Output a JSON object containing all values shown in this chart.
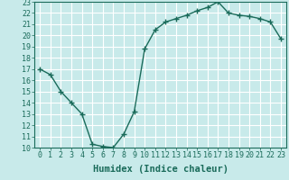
{
  "x": [
    0,
    1,
    2,
    3,
    4,
    5,
    6,
    7,
    8,
    9,
    10,
    11,
    12,
    13,
    14,
    15,
    16,
    17,
    18,
    19,
    20,
    21,
    22,
    23
  ],
  "y": [
    17,
    16.5,
    15,
    14,
    13,
    10.3,
    10.1,
    10,
    11.2,
    13.2,
    18.8,
    20.5,
    21.2,
    21.5,
    21.8,
    22.2,
    22.5,
    23,
    22,
    21.8,
    21.7,
    21.5,
    21.2,
    19.7
  ],
  "line_color": "#1a6b5a",
  "marker": "+",
  "marker_size": 4,
  "marker_lw": 1.0,
  "line_width": 1.0,
  "bg_color": "#c8eaea",
  "grid_color": "#ffffff",
  "xlabel": "Humidex (Indice chaleur)",
  "xlabel_fontsize": 7.5,
  "tick_fontsize": 6,
  "ylim": [
    10,
    23
  ],
  "xlim": [
    -0.5,
    23.5
  ],
  "yticks": [
    10,
    11,
    12,
    13,
    14,
    15,
    16,
    17,
    18,
    19,
    20,
    21,
    22,
    23
  ],
  "xticks": [
    0,
    1,
    2,
    3,
    4,
    5,
    6,
    7,
    8,
    9,
    10,
    11,
    12,
    13,
    14,
    15,
    16,
    17,
    18,
    19,
    20,
    21,
    22,
    23
  ]
}
